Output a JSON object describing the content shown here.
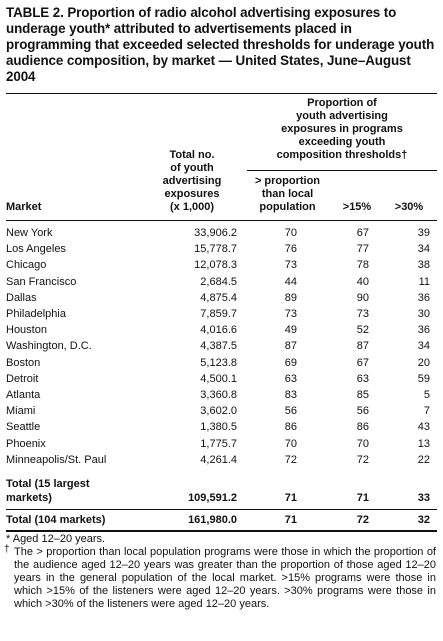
{
  "title": "TABLE 2. Proportion of radio alcohol advertising exposures to underage youth* attributed to advertisements placed in programming that exceeded selected thresholds for underage youth audience composition, by market — United States, June–August 2004",
  "headers": {
    "market": "Market",
    "total_line1": "Total no.",
    "total_line2": "of youth",
    "total_line3": "advertising",
    "total_line4": "exposures",
    "total_line5": "(x 1,000)",
    "group_line1": "Proportion of",
    "group_line2": "youth advertising",
    "group_line3": "exposures in programs",
    "group_line4": "exceeding youth",
    "group_line5": "composition thresholds†",
    "col_local_line1": "> proportion",
    "col_local_line2": "than local",
    "col_local_line3": "population",
    "col_15": ">15%",
    "col_30": ">30%"
  },
  "rows": [
    {
      "market": "New York",
      "total": "33,906.2",
      "local": "70",
      "p15": "67",
      "p30": "39"
    },
    {
      "market": "Los Angeles",
      "total": "15,778.7",
      "local": "76",
      "p15": "77",
      "p30": "34"
    },
    {
      "market": "Chicago",
      "total": "12,078.3",
      "local": "73",
      "p15": "78",
      "p30": "38"
    },
    {
      "market": "San Francisco",
      "total": "2,684.5",
      "local": "44",
      "p15": "40",
      "p30": "11"
    },
    {
      "market": "Dallas",
      "total": "4,875.4",
      "local": "89",
      "p15": "90",
      "p30": "36"
    },
    {
      "market": "Philadelphia",
      "total": "7,859.7",
      "local": "73",
      "p15": "73",
      "p30": "30"
    },
    {
      "market": "Houston",
      "total": "4,016.6",
      "local": "49",
      "p15": "52",
      "p30": "36"
    },
    {
      "market": "Washington, D.C.",
      "total": "4,387.5",
      "local": "87",
      "p15": "87",
      "p30": "34"
    },
    {
      "market": "Boston",
      "total": "5,123.8",
      "local": "69",
      "p15": "67",
      "p30": "20"
    },
    {
      "market": "Detroit",
      "total": "4,500.1",
      "local": "63",
      "p15": "63",
      "p30": "59"
    },
    {
      "market": "Atlanta",
      "total": "3,360.8",
      "local": "83",
      "p15": "85",
      "p30": "5"
    },
    {
      "market": "Miami",
      "total": "3,602.0",
      "local": "56",
      "p15": "56",
      "p30": "7"
    },
    {
      "market": "Seattle",
      "total": "1,380.5",
      "local": "86",
      "p15": "86",
      "p30": "43"
    },
    {
      "market": "Phoenix",
      "total": "1,775.7",
      "local": "70",
      "p15": "70",
      "p30": "13"
    },
    {
      "market": "Minneapolis/St. Paul",
      "total": "4,261.4",
      "local": "72",
      "p15": "72",
      "p30": "22"
    }
  ],
  "total15": {
    "label_line1": "Total (15 largest",
    "label_line2": " markets)",
    "total": "109,591.2",
    "local": "71",
    "p15": "71",
    "p30": "33"
  },
  "total104": {
    "label": "Total (104 markets)",
    "total": "161,980.0",
    "local": "71",
    "p15": "72",
    "p30": "32"
  },
  "footnotes": {
    "star": "* Aged 12–20 years.",
    "dagger_mark": "†",
    "dagger_text": "The > proportion than local population programs were those in which the proportion of the audience aged 12–20 years was greater than the proportion of those aged 12–20 years in the general population of the local market. >15% programs were those in which >15% of the listeners were aged 12–20 years. >30% programs were those in which >30% of the listeners were aged 12–20 years."
  }
}
